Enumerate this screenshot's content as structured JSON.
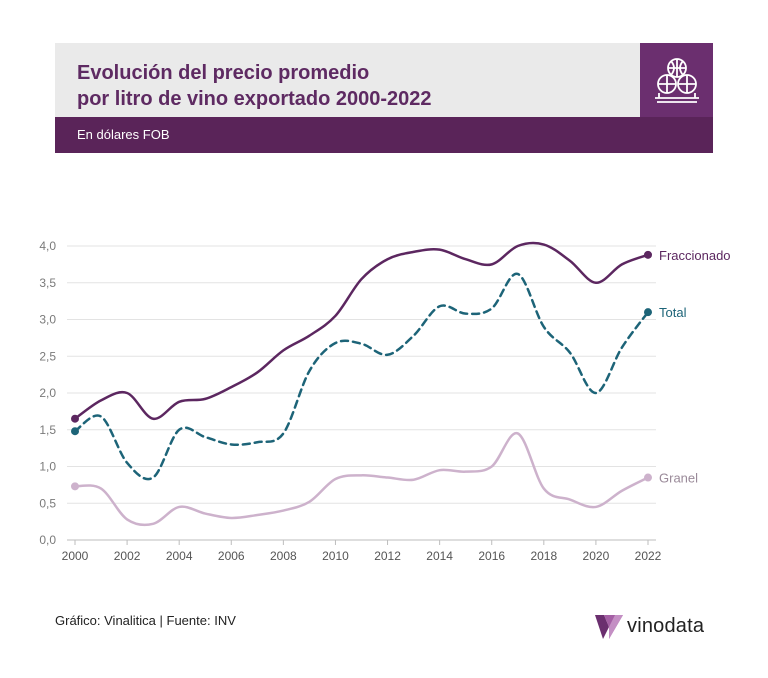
{
  "header": {
    "title_line1": "Evolución del precio promedio",
    "title_line2": "por litro de vino exportado 2000-2022",
    "subtitle": "En dólares FOB",
    "icon": "wine-barrels-icon"
  },
  "footer": {
    "source": "Gráfico: Vinalitica | Fuente: INV",
    "brand": "vinodata",
    "brand_logo": "vinodata-logo-icon"
  },
  "colors": {
    "accent": "#5e2a62",
    "fraccionado": "#5c2760",
    "total": "#1d6478",
    "granel": "#cdb2cc",
    "grid": "#e3e3e3",
    "axis_text": "#7a7a7a"
  },
  "chart_data": {
    "type": "line",
    "title": "Evolución del precio promedio por litro de vino exportado 2000-2022",
    "subtitle": "En dólares FOB",
    "xlabel": "",
    "ylabel": "",
    "xlim": [
      2000,
      2022
    ],
    "ylim": [
      0,
      4.0
    ],
    "x_ticks": [
      "2000",
      "2002",
      "2004",
      "2006",
      "2008",
      "2010",
      "2012",
      "2014",
      "2016",
      "2018",
      "2020",
      "2022"
    ],
    "y_ticks": [
      "0,0",
      "0,5",
      "1,0",
      "1,5",
      "2,0",
      "2,5",
      "3,0",
      "3,5",
      "4,0"
    ],
    "grid": true,
    "legend": "end-of-line labels",
    "x": [
      2000,
      2001,
      2002,
      2003,
      2004,
      2005,
      2006,
      2007,
      2008,
      2009,
      2010,
      2011,
      2012,
      2013,
      2014,
      2015,
      2016,
      2017,
      2018,
      2019,
      2020,
      2021,
      2022
    ],
    "series": [
      {
        "name": "Fraccionado",
        "style": "solid",
        "values": [
          1.65,
          1.9,
          2.0,
          1.65,
          1.88,
          1.92,
          2.08,
          2.28,
          2.58,
          2.78,
          3.05,
          3.55,
          3.82,
          3.92,
          3.95,
          3.82,
          3.75,
          4.0,
          4.02,
          3.8,
          3.5,
          3.75,
          3.88
        ]
      },
      {
        "name": "Total",
        "style": "dashed",
        "values": [
          1.48,
          1.68,
          1.05,
          0.85,
          1.5,
          1.4,
          1.3,
          1.33,
          1.45,
          2.3,
          2.68,
          2.67,
          2.52,
          2.78,
          3.18,
          3.08,
          3.15,
          3.62,
          2.9,
          2.55,
          2.0,
          2.62,
          3.1
        ]
      },
      {
        "name": "Granel",
        "style": "solid",
        "values": [
          0.73,
          0.7,
          0.28,
          0.22,
          0.45,
          0.36,
          0.3,
          0.34,
          0.4,
          0.52,
          0.83,
          0.88,
          0.85,
          0.82,
          0.95,
          0.93,
          1.0,
          1.45,
          0.7,
          0.55,
          0.45,
          0.67,
          0.85
        ]
      }
    ]
  }
}
